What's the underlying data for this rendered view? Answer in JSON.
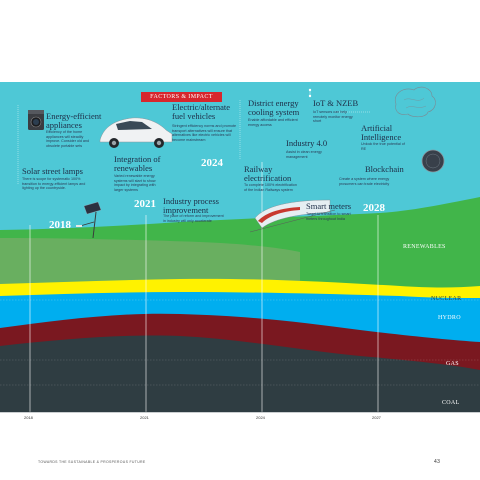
{
  "header_tag": "FACTORS & IMPACT",
  "colors": {
    "sky": "#4ec8d6",
    "renewables": "#41b54a",
    "nuclear": "#fff200",
    "hydro": "#00aeef",
    "gas": "#7a1820",
    "coal": "#2f3d42",
    "lines": "#ffffff"
  },
  "chart_data": {
    "type": "area",
    "x_ticks": [
      "2018",
      "2021",
      "2024",
      "2027"
    ],
    "stack_order": [
      "COAL",
      "GAS",
      "HYDRO",
      "NUCLEAR",
      "RENEWABLES"
    ],
    "band_labels": [
      "RENEWABLES",
      "NUCLEAR",
      "HYDRO",
      "GAS",
      "COAL"
    ]
  },
  "annotations": [
    {
      "id": "energy-efficient",
      "title": "Energy-efficient appliances",
      "text": "Efficiency of the home appliances will steadily improve. Consider old and obsolete portable sets"
    },
    {
      "id": "solar",
      "title": "Solar street lamps",
      "text": "There is scope for systematic 100% transition to energy-efficient lamps and lighting up the countryside."
    },
    {
      "id": "electric-vehicles",
      "title": "Electric/alternate fuel vehicles",
      "text": "Stringent efficiency norms and promote transport alternatives will ensure that alternatives like electric vehicles will become mainstream"
    },
    {
      "id": "renewables-integration",
      "title": "Integration of renewables",
      "text": "Varied renewable energy systems will start to show impact by integrating with larger systems"
    },
    {
      "id": "industry",
      "title": "Industry process improvement",
      "text": "The pace of reform and improvement in industry will only accelerate"
    },
    {
      "id": "district",
      "title": "District energy cooling system",
      "text": "Enable affordable and efficient energy access"
    },
    {
      "id": "railway",
      "title": "Railway electrification",
      "text": "To complete 100% electrification of the Indian Railways system"
    },
    {
      "id": "iot",
      "title": "IoT & NZEB",
      "text": "IoT sensors can help remotely monitor energy short"
    },
    {
      "id": "industry4",
      "title": "Industry 4.0",
      "text": "Assist in clean energy management"
    },
    {
      "id": "smart-meters",
      "title": "Smart meters",
      "text": "Target to transition to smart meters throughout India"
    },
    {
      "id": "ai",
      "title": "Artificial Intelligence",
      "text": "Unlock the true potential of RE"
    },
    {
      "id": "blockchain",
      "title": "Blockchain",
      "text": "Create a system where energy prosumers can trade electricity"
    }
  ],
  "milestones": [
    "2018",
    "2021",
    "2024",
    "2028"
  ],
  "footer": {
    "left": "TOWARDS THE SUSTAINABLE & PROSPEROUS FUTURE",
    "page": "43"
  }
}
